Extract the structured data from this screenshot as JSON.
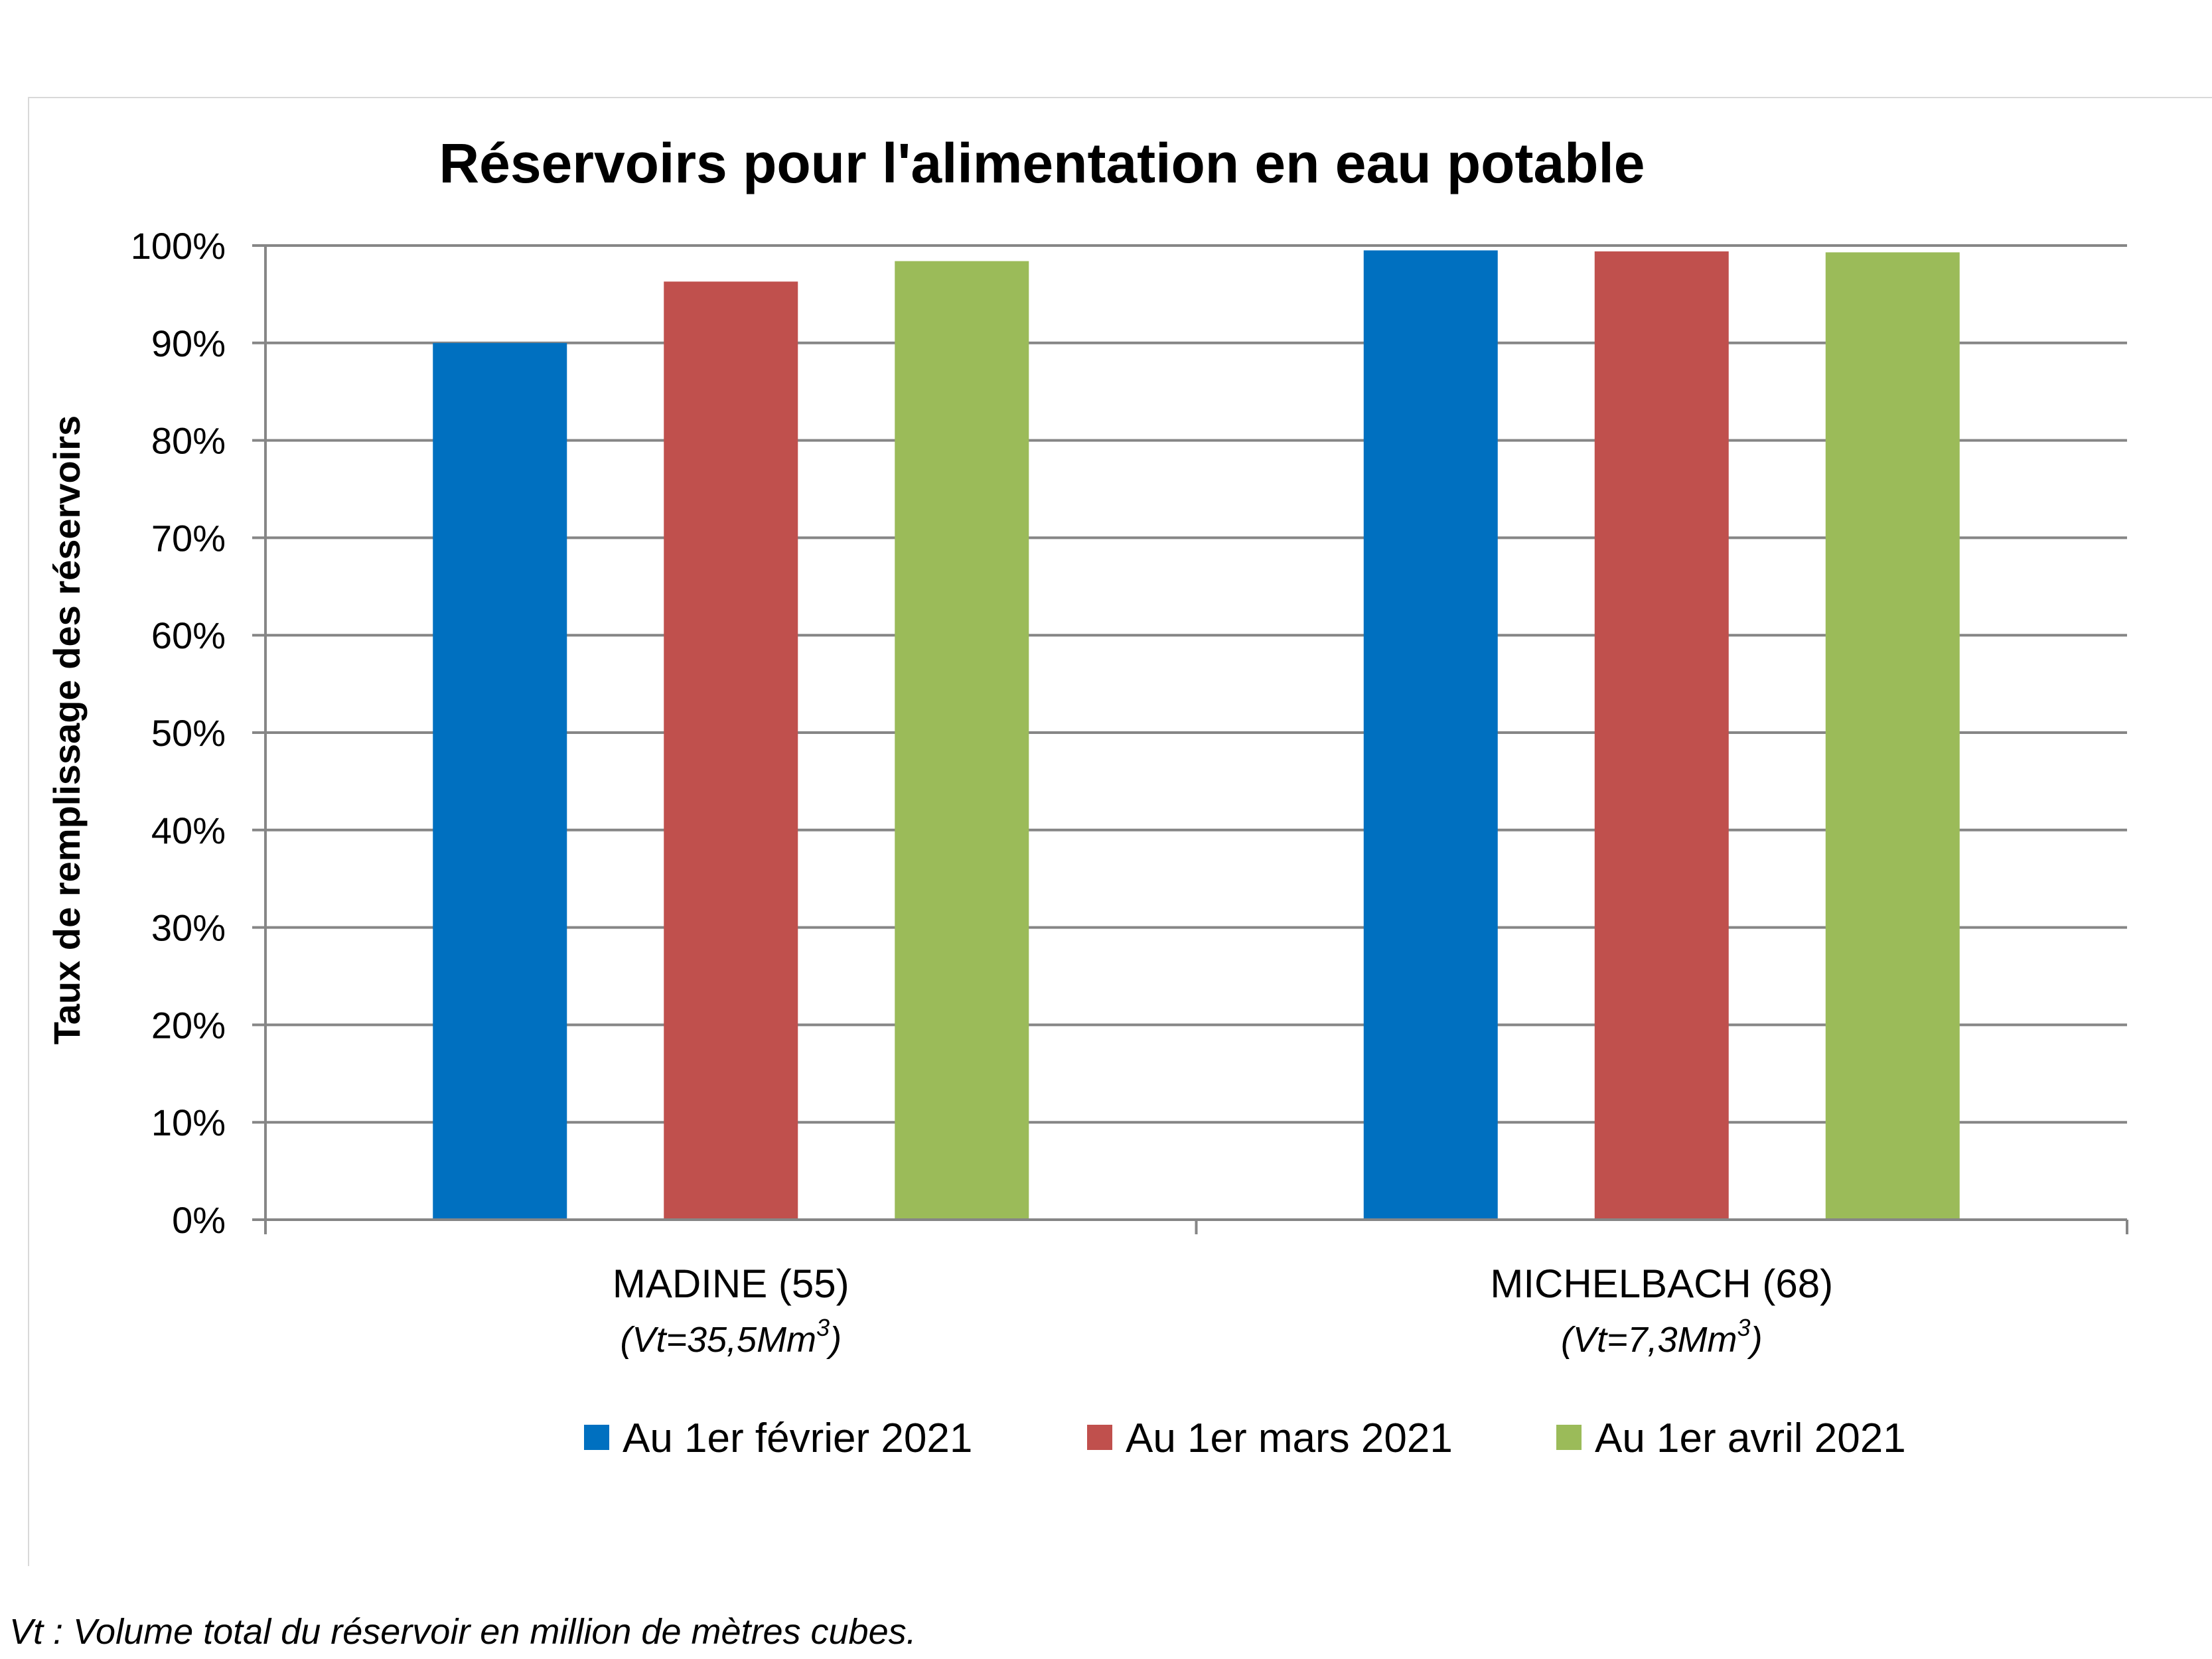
{
  "chart_data": {
    "type": "bar",
    "title": "Réservoirs pour l'alimentation en eau potable",
    "xlabel": "",
    "ylabel": "Taux de remplissage des réservoirs",
    "ylim": [
      0,
      100
    ],
    "y_ticks": [
      "0%",
      "10%",
      "20%",
      "30%",
      "40%",
      "50%",
      "60%",
      "70%",
      "80%",
      "90%",
      "100%"
    ],
    "grid": true,
    "legend_position": "bottom",
    "categories": [
      {
        "name": "MADINE (55)",
        "volume_prefix": "(Vt=35,5Mm",
        "volume_sup": "3",
        "volume_suffix": ")"
      },
      {
        "name": "MICHELBACH (68)",
        "volume_prefix": "(Vt=7,3Mm",
        "volume_sup": "3",
        "volume_suffix": ")"
      }
    ],
    "series": [
      {
        "name": "Au 1er février 2021",
        "color": "#0070c0",
        "values": [
          90,
          99.5
        ]
      },
      {
        "name": "Au 1er mars 2021",
        "color": "#c0504d",
        "values": [
          96.3,
          99.4
        ]
      },
      {
        "name": "Au 1er avril 2021",
        "color": "#9bbb59",
        "values": [
          98.4,
          99.3
        ]
      }
    ]
  },
  "footnote": "Vt : Volume total du réservoir en million de mètres cubes."
}
